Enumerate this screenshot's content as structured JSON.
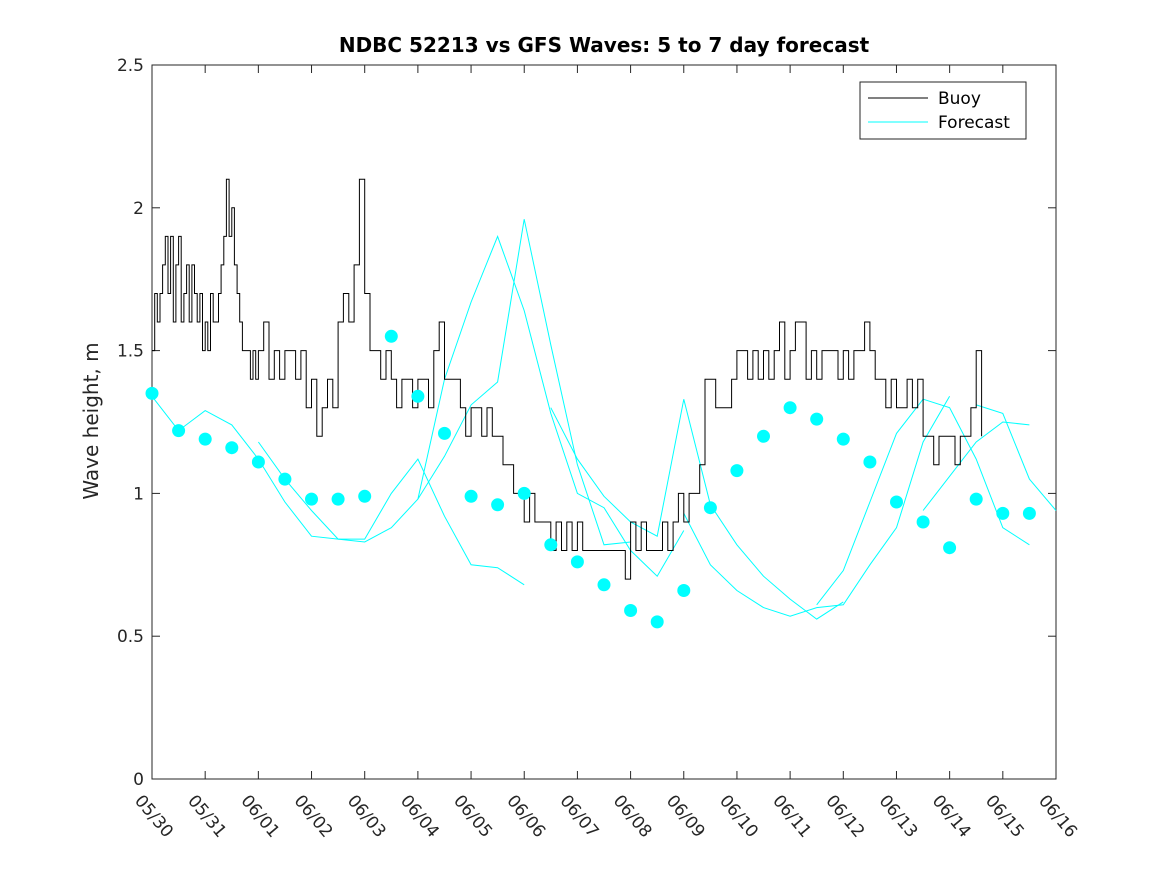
{
  "chart_data": {
    "type": "line",
    "title": "NDBC 52213 vs GFS Waves: 5 to 7 day forecast",
    "xlabel": "",
    "ylabel": "Wave height, m",
    "xlim": [
      0,
      17
    ],
    "ylim": [
      0,
      2.5
    ],
    "x_tick_labels": [
      "05/30",
      "05/31",
      "06/01",
      "06/02",
      "06/03",
      "06/04",
      "06/05",
      "06/06",
      "06/07",
      "06/08",
      "06/09",
      "06/10",
      "06/11",
      "06/12",
      "06/13",
      "06/14",
      "06/15",
      "06/16"
    ],
    "y_ticks": [
      0,
      0.5,
      1,
      1.5,
      2,
      2.5
    ],
    "y_tick_labels": [
      "0",
      "0.5",
      "1",
      "1.5",
      "2",
      "2.5"
    ],
    "grid": false,
    "legend_position": "top-right",
    "legend": [
      {
        "label": "Buoy",
        "color": "#000000"
      },
      {
        "label": "Forecast",
        "color": "#00ffff"
      }
    ],
    "series": [
      {
        "name": "Buoy",
        "color": "#000000",
        "x": [
          0.0,
          0.05,
          0.1,
          0.15,
          0.2,
          0.25,
          0.3,
          0.35,
          0.4,
          0.45,
          0.5,
          0.55,
          0.6,
          0.65,
          0.7,
          0.75,
          0.8,
          0.85,
          0.9,
          0.95,
          1.0,
          1.05,
          1.1,
          1.15,
          1.2,
          1.25,
          1.3,
          1.35,
          1.4,
          1.45,
          1.5,
          1.55,
          1.6,
          1.65,
          1.7,
          1.75,
          1.8,
          1.85,
          1.9,
          1.95,
          2.0,
          2.1,
          2.2,
          2.3,
          2.4,
          2.5,
          2.6,
          2.7,
          2.8,
          2.9,
          3.0,
          3.1,
          3.2,
          3.3,
          3.4,
          3.5,
          3.6,
          3.7,
          3.8,
          3.9,
          4.0,
          4.1,
          4.2,
          4.3,
          4.4,
          4.5,
          4.6,
          4.7,
          4.8,
          4.9,
          5.0,
          5.1,
          5.2,
          5.3,
          5.4,
          5.5,
          5.6,
          5.7,
          5.8,
          5.9,
          6.0,
          6.1,
          6.2,
          6.3,
          6.4,
          6.5,
          6.6,
          6.7,
          6.8,
          6.9,
          7.0,
          7.1,
          7.2,
          7.3,
          7.4,
          7.5,
          7.6,
          7.7,
          7.8,
          7.9,
          8.0,
          8.1,
          8.2,
          8.3,
          8.4,
          8.5,
          8.6,
          8.7,
          8.8,
          8.9,
          9.0,
          9.1,
          9.2,
          9.3,
          9.4,
          9.5,
          9.6,
          9.7,
          9.8,
          9.9,
          10.0,
          10.1,
          10.2,
          10.3,
          10.4,
          10.5,
          10.6,
          10.7,
          10.8,
          10.9,
          11.0,
          11.1,
          11.2,
          11.3,
          11.4,
          11.5,
          11.6,
          11.7,
          11.8,
          11.9,
          12.0,
          12.1,
          12.2,
          12.3,
          12.4,
          12.5,
          12.6,
          12.7,
          12.8,
          12.9,
          13.0,
          13.1,
          13.2,
          13.3,
          13.4,
          13.5,
          13.6,
          13.7,
          13.8,
          13.9,
          14.0,
          14.1,
          14.2,
          14.3,
          14.4,
          14.5,
          14.6,
          14.7,
          14.8,
          14.9,
          15.0,
          15.1,
          15.2,
          15.3,
          15.4,
          15.5,
          15.6
        ],
        "y": [
          1.5,
          1.7,
          1.6,
          1.7,
          1.8,
          1.9,
          1.7,
          1.9,
          1.6,
          1.8,
          1.9,
          1.6,
          1.7,
          1.8,
          1.6,
          1.8,
          1.7,
          1.6,
          1.7,
          1.5,
          1.6,
          1.5,
          1.7,
          1.6,
          1.6,
          1.7,
          1.8,
          1.9,
          2.1,
          1.9,
          2.0,
          1.8,
          1.7,
          1.6,
          1.5,
          1.5,
          1.5,
          1.4,
          1.5,
          1.4,
          1.5,
          1.6,
          1.4,
          1.5,
          1.4,
          1.5,
          1.5,
          1.4,
          1.5,
          1.3,
          1.4,
          1.2,
          1.3,
          1.4,
          1.3,
          1.6,
          1.7,
          1.6,
          1.8,
          2.1,
          1.7,
          1.5,
          1.5,
          1.4,
          1.5,
          1.4,
          1.3,
          1.4,
          1.4,
          1.3,
          1.4,
          1.4,
          1.3,
          1.5,
          1.6,
          1.4,
          1.4,
          1.4,
          1.3,
          1.2,
          1.3,
          1.3,
          1.2,
          1.3,
          1.2,
          1.2,
          1.1,
          1.1,
          1.0,
          1.0,
          0.9,
          1.0,
          0.9,
          0.9,
          0.9,
          0.8,
          0.9,
          0.8,
          0.9,
          0.8,
          0.9,
          0.8,
          0.8,
          0.8,
          0.8,
          0.8,
          0.8,
          0.8,
          0.8,
          0.7,
          0.9,
          0.8,
          0.9,
          0.8,
          0.8,
          0.8,
          0.9,
          0.8,
          0.9,
          1.0,
          0.9,
          1.0,
          1.0,
          1.1,
          1.4,
          1.4,
          1.3,
          1.3,
          1.3,
          1.4,
          1.5,
          1.5,
          1.4,
          1.5,
          1.4,
          1.5,
          1.4,
          1.5,
          1.6,
          1.4,
          1.5,
          1.6,
          1.6,
          1.4,
          1.5,
          1.4,
          1.5,
          1.5,
          1.5,
          1.4,
          1.5,
          1.4,
          1.5,
          1.5,
          1.6,
          1.5,
          1.4,
          1.4,
          1.3,
          1.4,
          1.3,
          1.3,
          1.4,
          1.3,
          1.4,
          1.2,
          1.2,
          1.1,
          1.2,
          1.2,
          1.2,
          1.1,
          1.2,
          1.2,
          1.3,
          1.5,
          1.2
        ]
      },
      {
        "name": "Forecast",
        "color": "#00ffff",
        "x": [
          0.0,
          0.5,
          1.0,
          1.5,
          2.0,
          2.5,
          3.0,
          3.5,
          4.0,
          4.5,
          5.0,
          5.5,
          6.0,
          6.5,
          7.0,
          7.5,
          8.0,
          8.5,
          9.0,
          9.5,
          10.0,
          10.5,
          11.0,
          11.5,
          12.0,
          12.5,
          13.0,
          13.5,
          14.0,
          14.5,
          15.0,
          15.5,
          16.0,
          16.5
        ],
        "y": [
          1.35,
          1.22,
          1.19,
          1.16,
          1.11,
          1.05,
          0.98,
          0.98,
          0.99,
          1.55,
          1.34,
          1.21,
          0.99,
          0.96,
          1.0,
          0.82,
          0.76,
          0.68,
          0.59,
          0.55,
          0.66,
          0.95,
          1.08,
          1.2,
          1.3,
          1.26,
          1.19,
          1.11,
          0.97,
          0.9,
          0.81,
          0.98,
          0.93,
          0.93
        ]
      }
    ],
    "forecast_traces": [
      {
        "x": [
          0.0,
          0.5,
          1.0,
          1.5,
          2.0,
          2.5,
          3.0,
          3.5,
          4.0,
          4.5,
          5.0,
          5.5,
          6.0,
          6.5,
          7.0
        ],
        "y": [
          1.34,
          1.22,
          1.29,
          1.24,
          1.12,
          0.97,
          0.85,
          0.84,
          0.84,
          1.0,
          1.12,
          0.92,
          0.75,
          0.74,
          0.68
        ]
      },
      {
        "x": [
          2.0,
          2.5,
          3.0,
          3.5,
          4.0,
          4.5,
          5.0,
          5.5,
          6.0,
          6.5,
          7.0,
          7.5,
          8.0,
          8.5,
          9.0
        ],
        "y": [
          1.18,
          1.05,
          0.94,
          0.84,
          0.83,
          0.88,
          0.98,
          1.13,
          1.31,
          1.39,
          1.96,
          1.52,
          1.1,
          0.82,
          0.83
        ]
      },
      {
        "x": [
          5.0,
          5.5,
          6.0,
          6.5,
          7.0,
          7.5,
          8.0,
          8.5,
          9.0,
          9.5,
          10.0
        ],
        "y": [
          0.98,
          1.4,
          1.67,
          1.9,
          1.64,
          1.28,
          1.0,
          0.95,
          0.8,
          0.71,
          0.87
        ]
      },
      {
        "x": [
          7.5,
          8.0,
          8.5,
          9.0,
          9.5,
          10.0,
          10.5,
          11.0,
          11.5,
          12.0,
          12.5,
          13.0
        ],
        "y": [
          1.3,
          1.12,
          0.99,
          0.9,
          0.85,
          1.33,
          0.96,
          0.82,
          0.71,
          0.63,
          0.56,
          0.62
        ]
      },
      {
        "x": [
          10.0,
          10.5,
          11.0,
          11.5,
          12.0,
          12.5,
          13.0,
          13.5,
          14.0,
          14.5,
          15.0
        ],
        "y": [
          0.93,
          0.75,
          0.66,
          0.6,
          0.57,
          0.6,
          0.61,
          0.75,
          0.88,
          1.18,
          1.34
        ]
      },
      {
        "x": [
          12.5,
          13.0,
          13.5,
          14.0,
          14.5,
          15.0,
          15.5,
          16.0,
          16.5
        ],
        "y": [
          0.61,
          0.73,
          0.97,
          1.21,
          1.33,
          1.3,
          1.12,
          0.88,
          0.82
        ]
      },
      {
        "x": [
          14.5,
          15.0,
          15.5,
          16.0,
          16.5
        ],
        "y": [
          0.94,
          1.06,
          1.18,
          1.25,
          1.24
        ]
      },
      {
        "x": [
          15.5,
          16.0,
          16.5,
          17.0
        ],
        "y": [
          1.31,
          1.28,
          1.05,
          0.94
        ]
      }
    ]
  }
}
